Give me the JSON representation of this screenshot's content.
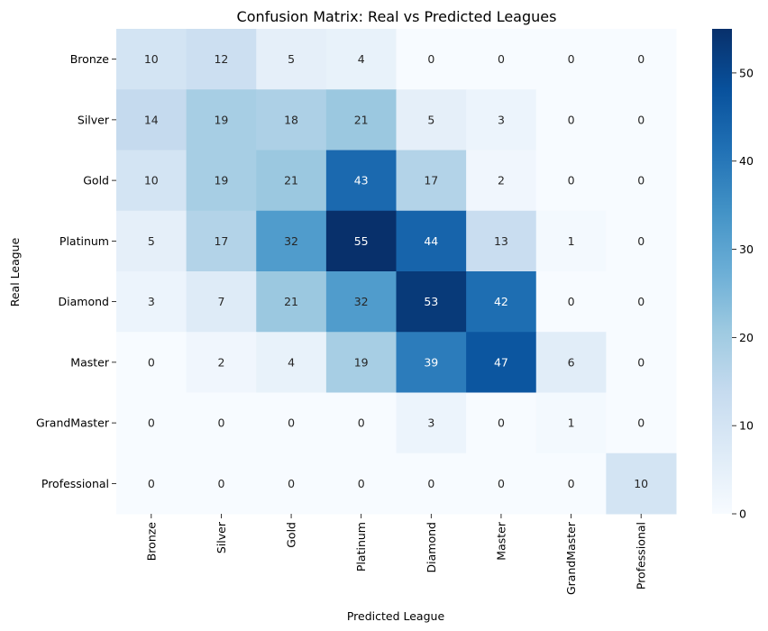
{
  "chart_data": {
    "type": "heatmap",
    "title": "Confusion Matrix: Real vs Predicted Leagues",
    "xlabel": "Predicted League",
    "ylabel": "Real League",
    "x_categories": [
      "Bronze",
      "Silver",
      "Gold",
      "Platinum",
      "Diamond",
      "Master",
      "GrandMaster",
      "Professional"
    ],
    "y_categories": [
      "Bronze",
      "Silver",
      "Gold",
      "Platinum",
      "Diamond",
      "Master",
      "GrandMaster",
      "Professional"
    ],
    "values": [
      [
        10,
        12,
        5,
        4,
        0,
        0,
        0,
        0
      ],
      [
        14,
        19,
        18,
        21,
        5,
        3,
        0,
        0
      ],
      [
        10,
        19,
        21,
        43,
        17,
        2,
        0,
        0
      ],
      [
        5,
        17,
        32,
        55,
        44,
        13,
        1,
        0
      ],
      [
        3,
        7,
        21,
        32,
        53,
        42,
        0,
        0
      ],
      [
        0,
        2,
        4,
        19,
        39,
        47,
        6,
        0
      ],
      [
        0,
        0,
        0,
        0,
        3,
        0,
        1,
        0
      ],
      [
        0,
        0,
        0,
        0,
        0,
        0,
        0,
        10
      ]
    ],
    "colorbar": {
      "min": 0,
      "max": 55,
      "ticks": [
        0,
        10,
        20,
        30,
        40,
        50
      ]
    },
    "colormap": "Blues"
  }
}
